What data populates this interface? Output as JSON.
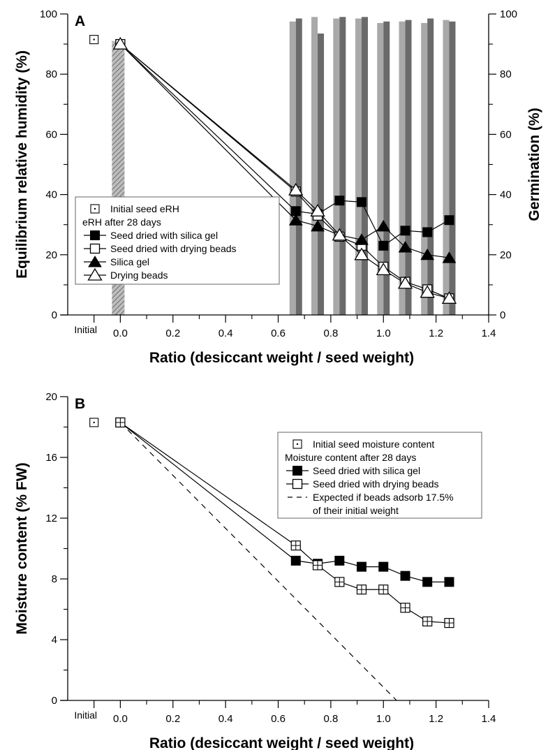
{
  "chart_data": [
    {
      "panel": "A",
      "type": "line",
      "xlabel": "Ratio (desiccant weight / seed weight)",
      "ylabel": "Equilibrium relative humidity (%)",
      "y2label": "Germination (%)",
      "xlim": [
        -0.2,
        1.4
      ],
      "ylim": [
        0,
        100
      ],
      "y2lim": [
        0,
        100
      ],
      "xticks": [
        "0.0",
        "0.2",
        "0.4",
        "0.6",
        "0.8",
        "1.0",
        "1.2",
        "1.4"
      ],
      "yticks": [
        "0",
        "20",
        "40",
        "60",
        "80",
        "100"
      ],
      "y2ticks": [
        "0",
        "20",
        "40",
        "60",
        "80",
        "100"
      ],
      "initial_label": "Initial",
      "initial_point": {
        "x": -0.1,
        "y": 91.5
      },
      "legend": {
        "initial": "Initial seed eRH",
        "group_title": "eRH after 28 days",
        "entries": [
          "Seed dried with silica gel",
          "Seed dried with drying beads",
          "Silica gel",
          "Drying beads"
        ]
      },
      "series": [
        {
          "name": "Seed dried with silica gel",
          "marker": "filled-square",
          "x": [
            0.0,
            0.667,
            0.75,
            0.833,
            0.917,
            1.0,
            1.083,
            1.167,
            1.25
          ],
          "y": [
            90,
            34.5,
            33.5,
            38,
            37.5,
            23,
            28,
            27.5,
            31.5
          ]
        },
        {
          "name": "Seed dried with drying beads",
          "marker": "open-square",
          "x": [
            0.0,
            0.667,
            0.75,
            0.833,
            0.917,
            1.0,
            1.083,
            1.167,
            1.25
          ],
          "y": [
            90,
            41,
            33,
            26,
            23,
            16,
            11,
            8.5,
            5.5
          ]
        },
        {
          "name": "Silica gel",
          "marker": "filled-triangle",
          "x": [
            0.0,
            0.667,
            0.75,
            0.833,
            0.917,
            1.0,
            1.083,
            1.167,
            1.25
          ],
          "y": [
            90,
            31.5,
            29.5,
            26.5,
            25,
            29.5,
            22.5,
            20,
            19
          ]
        },
        {
          "name": "Drying beads",
          "marker": "open-triangle",
          "x": [
            0.0,
            0.667,
            0.75,
            0.833,
            0.917,
            1.0,
            1.083,
            1.167,
            1.25
          ],
          "y": [
            90,
            41.5,
            34.5,
            26.5,
            20,
            15,
            10.5,
            7.5,
            5.5
          ]
        }
      ],
      "germination_bars": {
        "x": [
          0.667,
          0.75,
          0.833,
          0.917,
          1.0,
          1.083,
          1.167,
          1.25
        ],
        "light": [
          97.5,
          99,
          98.5,
          98.5,
          97,
          97.5,
          97,
          98
        ],
        "dark": [
          98.5,
          93.5,
          99,
          99,
          97.5,
          98,
          98.5,
          97.5
        ],
        "control_x": 0.0,
        "control": 91
      }
    },
    {
      "panel": "B",
      "type": "line",
      "xlabel": "Ratio (desiccant weight / seed weight)",
      "ylabel": "Moisture content (% FW)",
      "xlim": [
        -0.2,
        1.4
      ],
      "ylim": [
        0,
        20
      ],
      "xticks": [
        "0.0",
        "0.2",
        "0.4",
        "0.6",
        "0.8",
        "1.0",
        "1.2",
        "1.4"
      ],
      "yticks": [
        "0",
        "4",
        "8",
        "12",
        "16",
        "20"
      ],
      "initial_label": "Initial",
      "initial_point": {
        "x": -0.1,
        "y": 18.3
      },
      "legend": {
        "initial": "Initial seed moisture content",
        "group_title": "Moisture content after 28 days",
        "entries": [
          "Seed dried with silica gel",
          "Seed dried with drying beads",
          "Expected if beads adsorb 17.5%",
          "of their initial weight"
        ]
      },
      "series": [
        {
          "name": "Seed dried with silica gel",
          "marker": "filled-square",
          "x": [
            0.0,
            0.667,
            0.75,
            0.833,
            0.917,
            1.0,
            1.083,
            1.167,
            1.25
          ],
          "y": [
            18.3,
            9.2,
            9.0,
            9.2,
            8.8,
            8.8,
            8.2,
            7.8,
            7.8
          ]
        },
        {
          "name": "Seed dried with drying beads",
          "marker": "open-square",
          "x": [
            0.0,
            0.667,
            0.75,
            0.833,
            0.917,
            1.0,
            1.083,
            1.167,
            1.25
          ],
          "y": [
            18.3,
            10.2,
            8.9,
            7.8,
            7.3,
            7.3,
            6.1,
            5.2,
            5.1
          ]
        },
        {
          "name": "Expected if beads adsorb 17.5% of their initial weight",
          "marker": "dashed",
          "x": [
            0.0,
            1.05
          ],
          "y": [
            18.3,
            0
          ]
        }
      ]
    }
  ]
}
